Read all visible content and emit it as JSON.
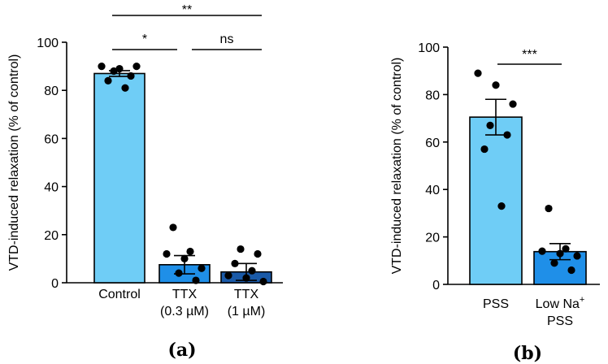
{
  "colors": {
    "bar_light": "#6fcdf6",
    "bar_mid": "#1f8fe8",
    "bar_dark": "#1a5aa8",
    "point": "#000000"
  },
  "chart_data": [
    {
      "type": "bar",
      "panel": "(a)",
      "ylabel": "VTD-induced relaxation (% of control)",
      "ylim": [
        0,
        100
      ],
      "yticks": [
        0,
        20,
        40,
        60,
        80,
        100
      ],
      "categories": [
        {
          "lines": [
            "Control"
          ],
          "value": 87,
          "sem": 1.2,
          "color": "#6fcdf6",
          "points": [
            90,
            89,
            90,
            88,
            86,
            84,
            81
          ]
        },
        {
          "lines": [
            "TTX",
            "(0.3 µM)"
          ],
          "value": 7.5,
          "sem": 3.8,
          "color": "#1f8fe8",
          "points": [
            23,
            13,
            12,
            10,
            6,
            4,
            1
          ]
        },
        {
          "lines": [
            "TTX",
            "(1 µM)"
          ],
          "value": 4.5,
          "sem": 3.5,
          "color": "#1a5aa8",
          "points": [
            14,
            12,
            8,
            5,
            3,
            2,
            0.5
          ]
        }
      ],
      "significance": [
        {
          "from": 0,
          "to": 2,
          "label": "**"
        },
        {
          "from": 0,
          "to": 1,
          "label": "*"
        },
        {
          "from": 1,
          "to": 2,
          "label": "ns"
        }
      ]
    },
    {
      "type": "bar",
      "panel": "(b)",
      "ylabel": "VTD-induced relaxation (% of control)",
      "ylim": [
        0,
        100
      ],
      "yticks": [
        0,
        20,
        40,
        60,
        80,
        100
      ],
      "categories": [
        {
          "lines": [
            "PSS"
          ],
          "value": 70.5,
          "sem": 7.5,
          "color": "#6fcdf6",
          "points": [
            89,
            84,
            76,
            67,
            63,
            57,
            33
          ]
        },
        {
          "lines": [
            "Low Na+",
            "PSS"
          ],
          "value": 13.8,
          "sem": 3.4,
          "color": "#1f8fe8",
          "points": [
            32,
            15,
            14,
            13,
            12,
            9,
            6
          ]
        }
      ],
      "significance": [
        {
          "from": 0,
          "to": 1,
          "label": "***"
        }
      ]
    }
  ]
}
